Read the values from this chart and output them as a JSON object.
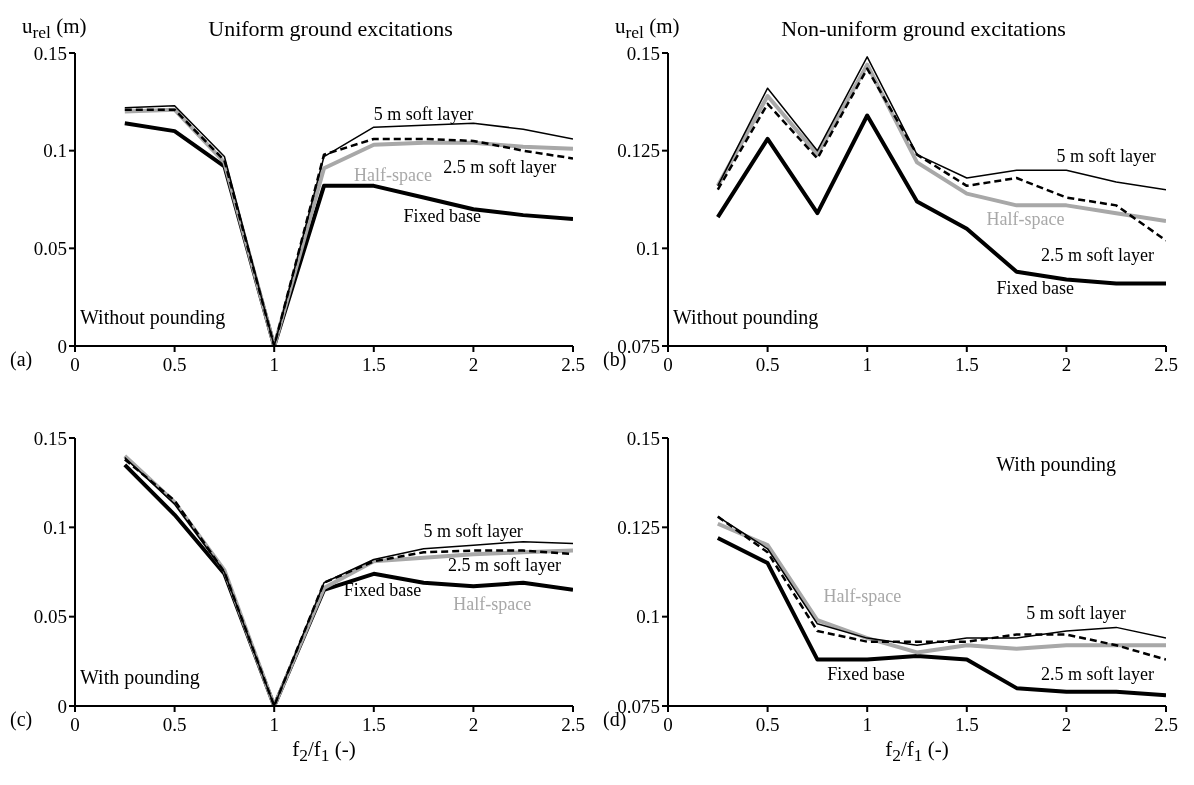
{
  "chart_data": [
    {
      "type": "line",
      "title": "Uniform ground excitations",
      "ylabel": "u$_{rel}$ (m)",
      "x": [
        0.25,
        0.5,
        0.75,
        1,
        1.25,
        1.5,
        1.75,
        2,
        2.25,
        2.5
      ],
      "xlim": [
        0,
        2.5
      ],
      "xticks": [
        0,
        0.5,
        1,
        1.5,
        2,
        2.5
      ],
      "ylim": [
        0,
        0.15
      ],
      "yticks": [
        0,
        0.05,
        0.1,
        0.15
      ],
      "grid": false,
      "legend": false,
      "marker": "none",
      "annotations": [
        "(a)",
        "Without pounding"
      ],
      "series": [
        {
          "name": "Fixed base",
          "color": "#000000",
          "line_style": "solid",
          "values": [
            0.114,
            0.11,
            0.092,
            0,
            0.082,
            0.082,
            0.076,
            0.07,
            0.067,
            0.065
          ]
        },
        {
          "name": "Half-space",
          "color": "#a8a8a8",
          "line_style": "solid",
          "values": [
            0.12,
            0.121,
            0.094,
            0,
            0.091,
            0.103,
            0.104,
            0.104,
            0.102,
            0.101
          ]
        },
        {
          "name": "2.5 m soft layer",
          "color": "#000000",
          "line_style": "dashed",
          "values": [
            0.121,
            0.121,
            0.095,
            0,
            0.098,
            0.106,
            0.106,
            0.105,
            0.1,
            0.096
          ]
        },
        {
          "name": "5 m soft layer",
          "color": "#000000",
          "line_style": "solid",
          "values": [
            0.122,
            0.123,
            0.097,
            0,
            0.097,
            0.112,
            0.113,
            0.114,
            0.111,
            0.106
          ]
        }
      ]
    },
    {
      "type": "line",
      "title": "Non-uniform ground excitations",
      "ylabel": "u$_{rel}$ (m)",
      "x": [
        0.25,
        0.5,
        0.75,
        1,
        1.25,
        1.5,
        1.75,
        2,
        2.25,
        2.5
      ],
      "xlim": [
        0,
        2.5
      ],
      "xticks": [
        0,
        0.5,
        1,
        1.5,
        2,
        2.5
      ],
      "ylim": [
        0.075,
        0.15
      ],
      "yticks": [
        0.075,
        0.1,
        0.125,
        0.15
      ],
      "grid": false,
      "legend": false,
      "marker": "none",
      "annotations": [
        "(b)",
        "Without pounding"
      ],
      "series": [
        {
          "name": "Fixed base",
          "color": "#000000",
          "line_style": "solid",
          "values": [
            0.108,
            0.128,
            0.109,
            0.134,
            0.112,
            0.105,
            0.094,
            0.092,
            0.091,
            0.091
          ]
        },
        {
          "name": "Half-space",
          "color": "#a8a8a8",
          "line_style": "solid",
          "values": [
            0.116,
            0.139,
            0.124,
            0.147,
            0.122,
            0.114,
            0.111,
            0.111,
            0.109,
            0.107
          ]
        },
        {
          "name": "2.5 m soft layer",
          "color": "#000000",
          "line_style": "dashed",
          "values": [
            0.115,
            0.137,
            0.123,
            0.146,
            0.124,
            0.116,
            0.118,
            0.113,
            0.111,
            0.102
          ]
        },
        {
          "name": "5 m soft layer",
          "color": "#000000",
          "line_style": "solid",
          "values": [
            0.116,
            0.141,
            0.125,
            0.149,
            0.124,
            0.118,
            0.12,
            0.12,
            0.117,
            0.115
          ]
        }
      ]
    },
    {
      "type": "line",
      "xlabel": "f$_{2}$/f$_{1}$ (-)",
      "x": [
        0.25,
        0.5,
        0.75,
        1,
        1.25,
        1.5,
        1.75,
        2,
        2.25,
        2.5
      ],
      "xlim": [
        0,
        2.5
      ],
      "xticks": [
        0,
        0.5,
        1,
        1.5,
        2,
        2.5
      ],
      "ylim": [
        0,
        0.15
      ],
      "yticks": [
        0,
        0.05,
        0.1,
        0.15
      ],
      "grid": false,
      "legend": false,
      "marker": "none",
      "annotations": [
        "(c)",
        "With pounding"
      ],
      "series": [
        {
          "name": "Fixed base",
          "color": "#000000",
          "line_style": "solid",
          "values": [
            0.135,
            0.107,
            0.074,
            0,
            0.065,
            0.074,
            0.069,
            0.067,
            0.069,
            0.065
          ]
        },
        {
          "name": "Half-space",
          "color": "#a8a8a8",
          "line_style": "solid",
          "values": [
            0.14,
            0.114,
            0.076,
            0,
            0.066,
            0.081,
            0.083,
            0.085,
            0.086,
            0.087
          ]
        },
        {
          "name": "2.5 m soft layer",
          "color": "#000000",
          "line_style": "dashed",
          "values": [
            0.138,
            0.115,
            0.075,
            0,
            0.069,
            0.081,
            0.086,
            0.087,
            0.087,
            0.085
          ]
        },
        {
          "name": "5 m soft layer",
          "color": "#000000",
          "line_style": "solid",
          "values": [
            0.139,
            0.113,
            0.075,
            0,
            0.069,
            0.082,
            0.088,
            0.09,
            0.092,
            0.091
          ]
        }
      ]
    },
    {
      "type": "line",
      "xlabel": "f$_{2}$/f$_{1}$ (-)",
      "x": [
        0.25,
        0.5,
        0.75,
        1,
        1.25,
        1.5,
        1.75,
        2,
        2.25,
        2.5
      ],
      "xlim": [
        0,
        2.5
      ],
      "xticks": [
        0,
        0.5,
        1,
        1.5,
        2,
        2.5
      ],
      "ylim": [
        0.075,
        0.15
      ],
      "yticks": [
        0.075,
        0.1,
        0.125,
        0.15
      ],
      "grid": false,
      "legend": false,
      "marker": "none",
      "annotations": [
        "(d)",
        "With pounding"
      ],
      "series": [
        {
          "name": "Fixed base",
          "color": "#000000",
          "line_style": "solid",
          "values": [
            0.122,
            0.115,
            0.088,
            0.088,
            0.089,
            0.088,
            0.08,
            0.079,
            0.079,
            0.078
          ]
        },
        {
          "name": "Half-space",
          "color": "#a8a8a8",
          "line_style": "solid",
          "values": [
            0.126,
            0.12,
            0.099,
            0.094,
            0.09,
            0.092,
            0.091,
            0.092,
            0.092,
            0.092
          ]
        },
        {
          "name": "2.5 m soft layer",
          "color": "#000000",
          "line_style": "dashed",
          "values": [
            0.128,
            0.118,
            0.096,
            0.093,
            0.093,
            0.093,
            0.095,
            0.095,
            0.092,
            0.088
          ]
        },
        {
          "name": "5 m soft layer",
          "color": "#000000",
          "line_style": "solid",
          "values": [
            0.128,
            0.119,
            0.098,
            0.094,
            0.092,
            0.094,
            0.094,
            0.096,
            0.097,
            0.094
          ]
        }
      ]
    }
  ]
}
